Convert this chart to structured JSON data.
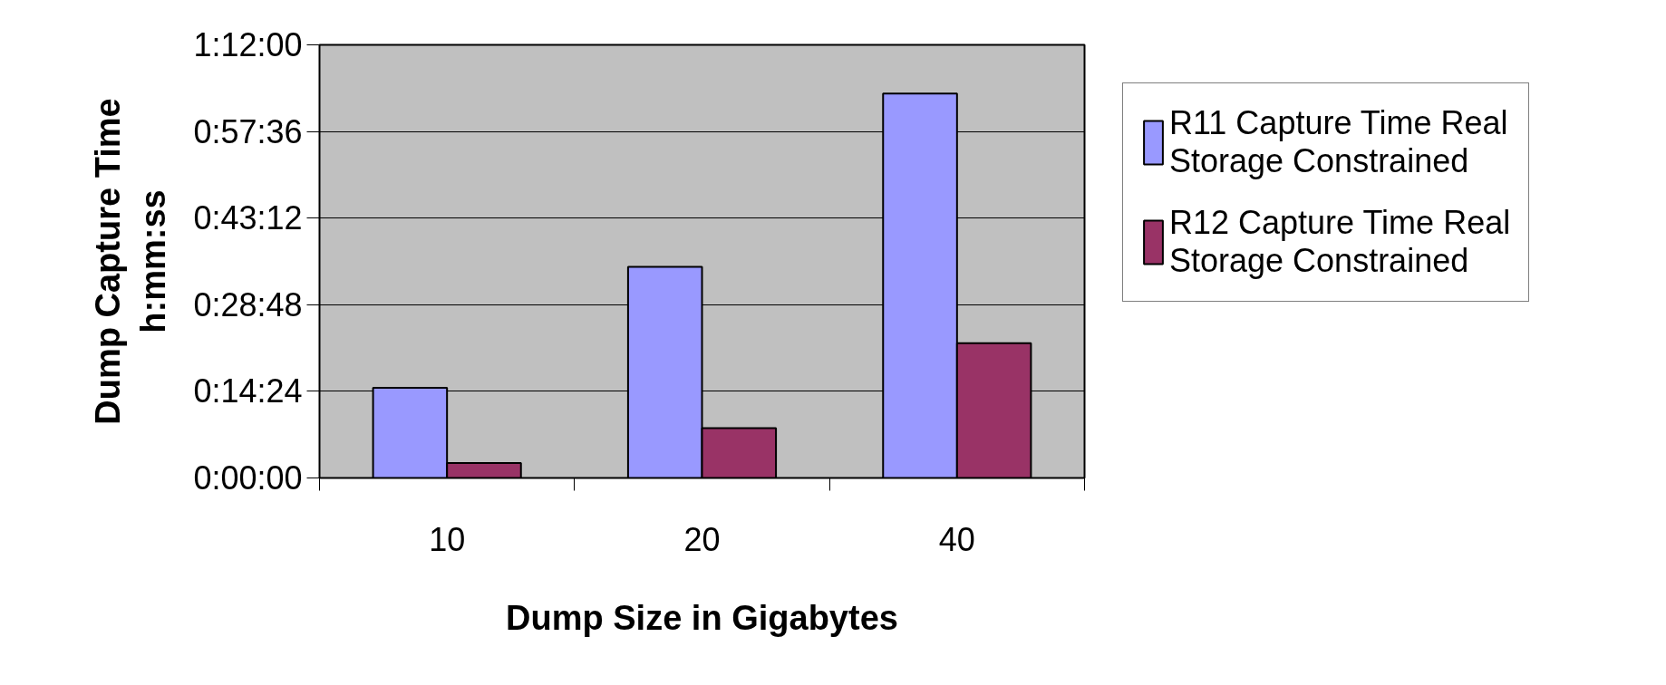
{
  "chart_data": {
    "type": "bar",
    "xlabel": "Dump Size in Gigabytes",
    "ylabel": "Dump Capture Time\nh:mm:ss",
    "categories": [
      "10",
      "20",
      "40"
    ],
    "series": [
      {
        "name": "R11 Capture Time Real Storage Constrained",
        "color": "#9999ff",
        "values": [
          15.0,
          35.1,
          63.9
        ]
      },
      {
        "name": "R12 Capture Time Real Storage Constrained",
        "color": "#993366",
        "values": [
          2.5,
          8.3,
          22.4
        ]
      }
    ],
    "ylim": [
      0,
      72
    ],
    "yticks": [
      {
        "value": 0,
        "label": "0:00:00"
      },
      {
        "value": 14.4,
        "label": "0:14:24"
      },
      {
        "value": 28.8,
        "label": "0:28:48"
      },
      {
        "value": 43.2,
        "label": "0:43:12"
      },
      {
        "value": 57.6,
        "label": "0:57:36"
      },
      {
        "value": 72,
        "label": "1:12:00"
      }
    ],
    "grid": "y",
    "legend": "right"
  }
}
